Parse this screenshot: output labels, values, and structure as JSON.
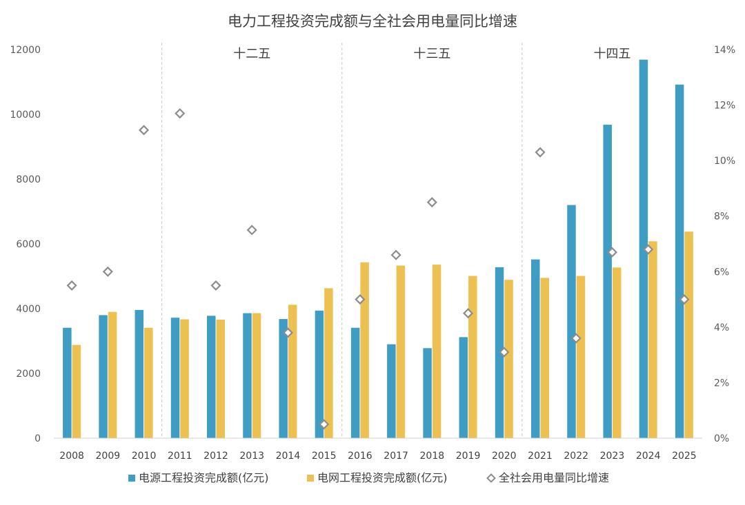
{
  "chart_data": {
    "type": "bar",
    "title": "电力工程投资完成额与全社会用电量同比增速",
    "categories": [
      "2008",
      "2009",
      "2010",
      "2011",
      "2012",
      "2013",
      "2014",
      "2015",
      "2016",
      "2017",
      "2018",
      "2019",
      "2020",
      "2021",
      "2022",
      "2023",
      "2024",
      "2025"
    ],
    "series": [
      {
        "name": "电源工程投资完成额(亿元)",
        "type": "bar",
        "axis": "left",
        "color": "#3f9dc4",
        "values": [
          3410,
          3800,
          3960,
          3720,
          3780,
          3860,
          3680,
          3940,
          3410,
          2900,
          2780,
          3120,
          5280,
          5520,
          7200,
          9680,
          11690,
          10920
        ]
      },
      {
        "name": "电网工程投资完成额(亿元)",
        "type": "bar",
        "axis": "left",
        "color": "#ecc152",
        "values": [
          2880,
          3900,
          3410,
          3670,
          3660,
          3860,
          4120,
          4630,
          5430,
          5330,
          5360,
          5010,
          4890,
          4950,
          5010,
          5270,
          6080,
          6380
        ]
      },
      {
        "name": "全社会用电量同比增速",
        "type": "scatter",
        "axis": "right",
        "marker": "diamond",
        "color": "#8c8c8c",
        "values": [
          5.5,
          6.0,
          11.1,
          11.7,
          5.5,
          7.5,
          3.8,
          0.5,
          5.0,
          6.6,
          8.5,
          4.5,
          3.1,
          10.3,
          3.6,
          6.7,
          6.8,
          5.0
        ]
      }
    ],
    "y_left": {
      "ylim": [
        0,
        12000
      ],
      "ticks": [
        "0",
        "2000",
        "4000",
        "6000",
        "8000",
        "10000",
        "12000"
      ]
    },
    "y_right": {
      "ylim": [
        0,
        14
      ],
      "ticks": [
        "0%",
        "2%",
        "4%",
        "6%",
        "8%",
        "10%",
        "12%",
        "14%"
      ]
    },
    "periods": [
      {
        "label": "十二五"
      },
      {
        "label": "十三五"
      },
      {
        "label": "十四五"
      }
    ],
    "grid": false,
    "legend_position": "bottom"
  }
}
